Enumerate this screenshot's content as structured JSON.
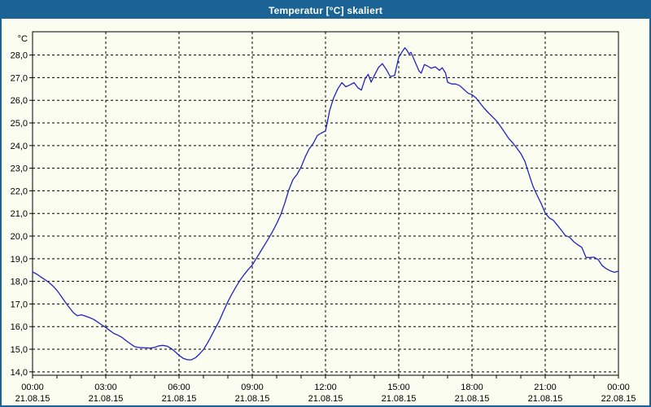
{
  "window": {
    "title": "Temperatur [°C] skaliert"
  },
  "colors": {
    "titlebar": "#1b6394",
    "title_text": "#ffffff",
    "window_border": "#1b6394",
    "background": "#fbfdf0",
    "axis": "#000000",
    "grid": "#000000",
    "line": "#2222c2"
  },
  "chart_data": {
    "type": "line",
    "title": "Temperatur [°C] skaliert",
    "ylabel": "°C",
    "xlabel": "",
    "legend": "none",
    "grid": "dashed",
    "xlim_hours": [
      0,
      24
    ],
    "ylim": [
      13.85,
      29.03
    ],
    "y_ticks": [
      {
        "value": 14,
        "label": "14,0"
      },
      {
        "value": 15,
        "label": "15,0"
      },
      {
        "value": 16,
        "label": "16,0"
      },
      {
        "value": 17,
        "label": "17,0"
      },
      {
        "value": 18,
        "label": "18,0"
      },
      {
        "value": 19,
        "label": "19,0"
      },
      {
        "value": 20,
        "label": "20,0"
      },
      {
        "value": 21,
        "label": "21,0"
      },
      {
        "value": 22,
        "label": "22,0"
      },
      {
        "value": 23,
        "label": "23,0"
      },
      {
        "value": 24,
        "label": "24,0"
      },
      {
        "value": 25,
        "label": "25,0"
      },
      {
        "value": 26,
        "label": "26,0"
      },
      {
        "value": 27,
        "label": "27,0"
      },
      {
        "value": 28,
        "label": "28,0"
      }
    ],
    "x_ticks": [
      {
        "hour": 0,
        "time": "00:00",
        "date": "21.08.15"
      },
      {
        "hour": 3,
        "time": "03:00",
        "date": "21.08.15"
      },
      {
        "hour": 6,
        "time": "06:00",
        "date": "21.08.15"
      },
      {
        "hour": 9,
        "time": "09:00",
        "date": "21.08.15"
      },
      {
        "hour": 12,
        "time": "12:00",
        "date": "21.08.15"
      },
      {
        "hour": 15,
        "time": "15:00",
        "date": "21.08.15"
      },
      {
        "hour": 18,
        "time": "18:00",
        "date": "21.08.15"
      },
      {
        "hour": 21,
        "time": "21:00",
        "date": "21.08.15"
      },
      {
        "hour": 24,
        "time": "00:00",
        "date": "22.08.15"
      }
    ],
    "minor_x_tick_every_hours": 1,
    "series": [
      {
        "name": "Temperatur",
        "unit": "°C",
        "color": "#2222c2",
        "points": [
          [
            0,
            18.42
          ],
          [
            0.17,
            18.32
          ],
          [
            0.33,
            18.2
          ],
          [
            0.5,
            18.08
          ],
          [
            0.67,
            17.95
          ],
          [
            0.83,
            17.8
          ],
          [
            1,
            17.6
          ],
          [
            1.17,
            17.35
          ],
          [
            1.33,
            17.1
          ],
          [
            1.5,
            16.85
          ],
          [
            1.67,
            16.62
          ],
          [
            1.83,
            16.48
          ],
          [
            2,
            16.52
          ],
          [
            2.17,
            16.46
          ],
          [
            2.33,
            16.4
          ],
          [
            2.5,
            16.32
          ],
          [
            2.67,
            16.2
          ],
          [
            2.83,
            16.08
          ],
          [
            3,
            15.96
          ],
          [
            3.17,
            15.82
          ],
          [
            3.33,
            15.7
          ],
          [
            3.5,
            15.62
          ],
          [
            3.67,
            15.52
          ],
          [
            3.83,
            15.38
          ],
          [
            4,
            15.25
          ],
          [
            4.17,
            15.12
          ],
          [
            4.33,
            15.08
          ],
          [
            4.5,
            15.07
          ],
          [
            4.67,
            15.06
          ],
          [
            4.83,
            15.05
          ],
          [
            5,
            15.08
          ],
          [
            5.17,
            15.15
          ],
          [
            5.33,
            15.17
          ],
          [
            5.5,
            15.14
          ],
          [
            5.67,
            15.04
          ],
          [
            5.83,
            14.9
          ],
          [
            6,
            14.73
          ],
          [
            6.17,
            14.6
          ],
          [
            6.33,
            14.54
          ],
          [
            6.5,
            14.53
          ],
          [
            6.67,
            14.62
          ],
          [
            6.83,
            14.78
          ],
          [
            7,
            14.98
          ],
          [
            7.17,
            15.28
          ],
          [
            7.33,
            15.6
          ],
          [
            7.5,
            15.95
          ],
          [
            7.67,
            16.3
          ],
          [
            7.83,
            16.7
          ],
          [
            8,
            17.1
          ],
          [
            8.17,
            17.45
          ],
          [
            8.33,
            17.75
          ],
          [
            8.5,
            18.05
          ],
          [
            8.67,
            18.3
          ],
          [
            8.83,
            18.52
          ],
          [
            9,
            18.72
          ],
          [
            9.17,
            19.02
          ],
          [
            9.33,
            19.3
          ],
          [
            9.5,
            19.6
          ],
          [
            9.67,
            19.9
          ],
          [
            9.83,
            20.2
          ],
          [
            10,
            20.55
          ],
          [
            10.17,
            20.95
          ],
          [
            10.33,
            21.45
          ],
          [
            10.5,
            22.05
          ],
          [
            10.67,
            22.5
          ],
          [
            10.83,
            22.72
          ],
          [
            11,
            23.05
          ],
          [
            11.17,
            23.5
          ],
          [
            11.33,
            23.85
          ],
          [
            11.5,
            24.1
          ],
          [
            11.67,
            24.45
          ],
          [
            11.83,
            24.55
          ],
          [
            12,
            24.65
          ],
          [
            12.08,
            25.05
          ],
          [
            12.17,
            25.55
          ],
          [
            12.33,
            26.1
          ],
          [
            12.5,
            26.5
          ],
          [
            12.67,
            26.78
          ],
          [
            12.83,
            26.6
          ],
          [
            13,
            26.68
          ],
          [
            13.17,
            26.78
          ],
          [
            13.33,
            26.55
          ],
          [
            13.47,
            26.45
          ],
          [
            13.62,
            26.95
          ],
          [
            13.75,
            27.15
          ],
          [
            13.87,
            26.8
          ],
          [
            14,
            27.1
          ],
          [
            14.17,
            27.45
          ],
          [
            14.33,
            27.62
          ],
          [
            14.5,
            27.35
          ],
          [
            14.65,
            27.05
          ],
          [
            14.83,
            27.1
          ],
          [
            15,
            27.9
          ],
          [
            15.1,
            28.08
          ],
          [
            15.25,
            28.32
          ],
          [
            15.33,
            28.22
          ],
          [
            15.42,
            28.05
          ],
          [
            15.5,
            28.12
          ],
          [
            15.67,
            27.7
          ],
          [
            15.83,
            27.3
          ],
          [
            15.92,
            27.2
          ],
          [
            16.05,
            27.58
          ],
          [
            16.17,
            27.52
          ],
          [
            16.33,
            27.42
          ],
          [
            16.5,
            27.48
          ],
          [
            16.67,
            27.32
          ],
          [
            16.78,
            27.44
          ],
          [
            16.92,
            27.2
          ],
          [
            17,
            26.8
          ],
          [
            17.17,
            26.72
          ],
          [
            17.33,
            26.72
          ],
          [
            17.5,
            26.65
          ],
          [
            17.67,
            26.48
          ],
          [
            17.83,
            26.32
          ],
          [
            18,
            26.25
          ],
          [
            18.17,
            26.1
          ],
          [
            18.33,
            25.88
          ],
          [
            18.5,
            25.65
          ],
          [
            18.67,
            25.45
          ],
          [
            18.83,
            25.28
          ],
          [
            19,
            25.1
          ],
          [
            19.17,
            24.85
          ],
          [
            19.33,
            24.6
          ],
          [
            19.5,
            24.32
          ],
          [
            19.67,
            24.12
          ],
          [
            19.83,
            23.9
          ],
          [
            20,
            23.65
          ],
          [
            20.17,
            23.3
          ],
          [
            20.33,
            22.75
          ],
          [
            20.5,
            22.2
          ],
          [
            20.67,
            21.8
          ],
          [
            20.83,
            21.45
          ],
          [
            21,
            21.02
          ],
          [
            21.17,
            20.8
          ],
          [
            21.33,
            20.7
          ],
          [
            21.5,
            20.48
          ],
          [
            21.67,
            20.25
          ],
          [
            21.83,
            20.02
          ],
          [
            22,
            19.95
          ],
          [
            22.17,
            19.75
          ],
          [
            22.33,
            19.62
          ],
          [
            22.5,
            19.5
          ],
          [
            22.67,
            19.06
          ],
          [
            22.83,
            19.05
          ],
          [
            23,
            19.07
          ],
          [
            23.17,
            18.96
          ],
          [
            23.33,
            18.7
          ],
          [
            23.5,
            18.56
          ],
          [
            23.67,
            18.46
          ],
          [
            23.83,
            18.4
          ],
          [
            24,
            18.45
          ]
        ]
      }
    ]
  }
}
